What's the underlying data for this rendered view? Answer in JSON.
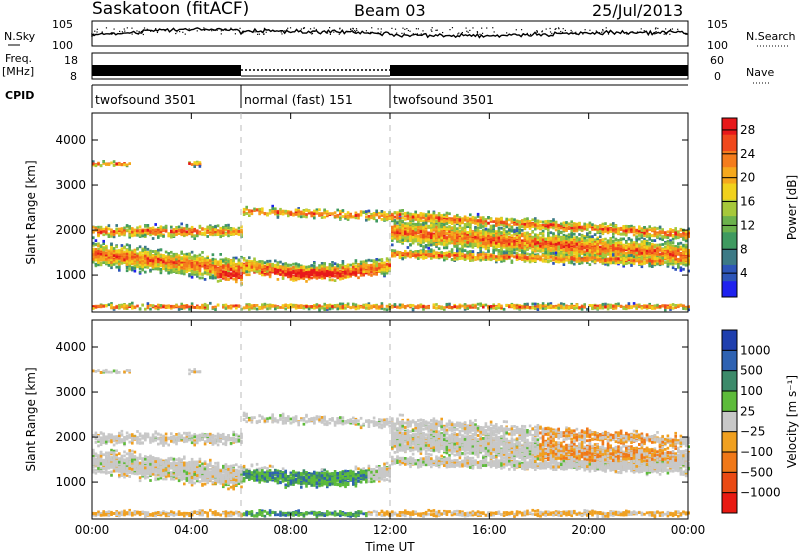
{
  "header": {
    "site": "Saskatoon (fitACF)",
    "beam": "Beam 03",
    "date": "25/Jul/2013"
  },
  "status_panels": {
    "nsky_label": "N.Sky",
    "nsky_ticks": [
      "10^5",
      "10^0"
    ],
    "nsearch_label": "N.Search",
    "nsearch_ticks": [
      "10^5",
      "10^0"
    ],
    "freq_label": [
      "Freq.",
      "[MHz]"
    ],
    "freq_ticks": [
      18,
      8
    ],
    "nave_label": "Nave",
    "nave_ticks": [
      60,
      0
    ],
    "cpid_label": "CPID",
    "cpid_segments": [
      {
        "label": "twofsound 3501",
        "start": 0,
        "end": 6
      },
      {
        "label": "normal (fast) 151",
        "start": 6,
        "end": 12
      },
      {
        "label": "twofsound 3501",
        "start": 12,
        "end": 24
      }
    ]
  },
  "chart_data": [
    {
      "type": "heatmap",
      "name": "power",
      "ylabel": "Slant Range [km]",
      "ylim": [
        180,
        4600
      ],
      "yticks": [
        1000,
        2000,
        3000,
        4000
      ],
      "xlim": [
        0,
        24
      ],
      "xticks": [
        "00:00",
        "04:00",
        "08:00",
        "12:00",
        "16:00",
        "20:00",
        "00:00"
      ],
      "xtick_values": [
        0,
        4,
        8,
        12,
        16,
        20,
        24
      ],
      "colorbar": {
        "label": "Power [dB]",
        "ticks": [
          4,
          8,
          12,
          16,
          20,
          24,
          28
        ],
        "range": [
          0,
          30
        ],
        "colors": [
          "#1f22ee",
          "#2d55b8",
          "#3c7a86",
          "#3f9a60",
          "#6cb24c",
          "#a6c83a",
          "#f1d11c",
          "#f5a81c",
          "#f47c1c",
          "#f0481c",
          "#e8181a"
        ]
      }
    },
    {
      "type": "heatmap",
      "name": "velocity",
      "ylabel": "Slant Range [km]",
      "xlabel": "Time UT",
      "ylim": [
        180,
        4600
      ],
      "yticks": [
        1000,
        2000,
        3000,
        4000
      ],
      "xlim": [
        0,
        24
      ],
      "xticks": [
        "00:00",
        "04:00",
        "08:00",
        "12:00",
        "16:00",
        "20:00",
        "00:00"
      ],
      "xtick_values": [
        0,
        4,
        8,
        12,
        16,
        20,
        24
      ],
      "colorbar": {
        "label": "Velocity [m s⁻¹]",
        "ticks": [
          "1000",
          "500",
          "100",
          "25",
          "−25",
          "−100",
          "−500",
          "−1000"
        ],
        "colors": [
          "#1f3fae",
          "#2e62b2",
          "#3c8a6a",
          "#5dbb3a",
          "#c8c8c8",
          "#f0a020",
          "#f07818",
          "#ea4a14",
          "#e81a12"
        ]
      }
    }
  ],
  "colors": {
    "grey_scatter": "#c4c4c4",
    "tick_dash": "#bbbbbb"
  }
}
